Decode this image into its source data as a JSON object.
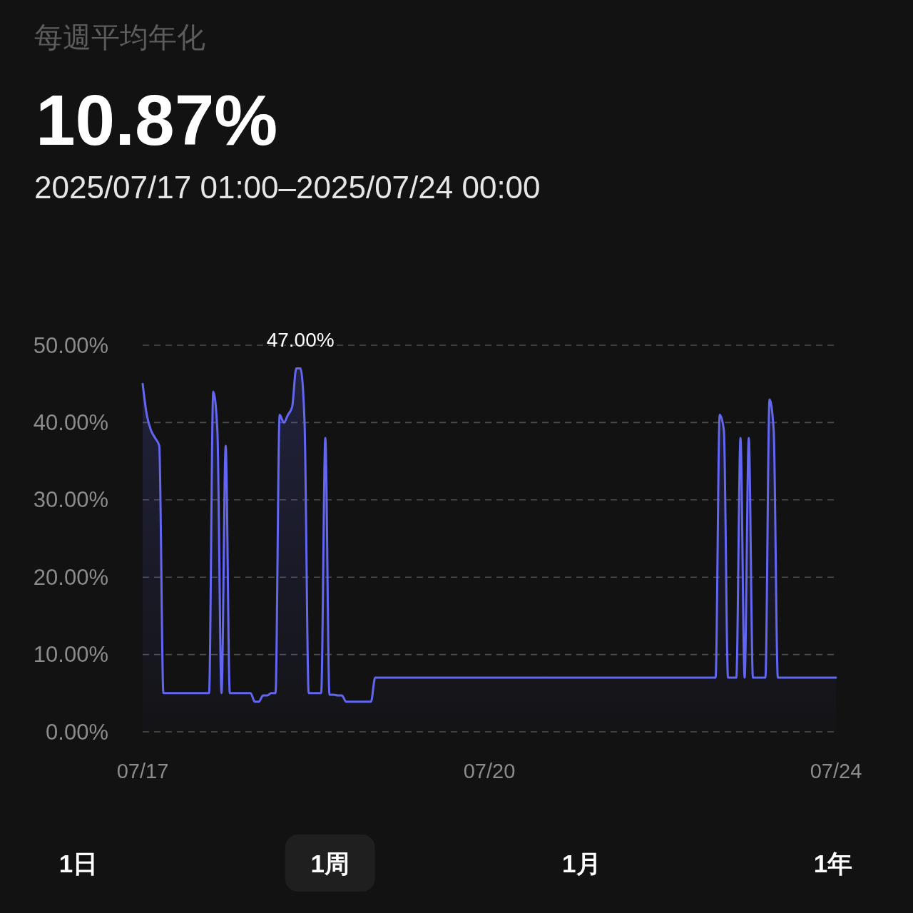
{
  "chart_data": {
    "type": "area",
    "title": "每週平均年化",
    "subtitle": "10.87%",
    "annotations": [
      "2025/07/17 01:00–2025/07/24 00:00",
      {
        "text": "47.00%",
        "x": "2025-07-18T15:00",
        "y": 47
      },
      "1日",
      "1周",
      "1月",
      "1年"
    ],
    "x": [
      "2025-07-17T01:00",
      "2025-07-17T02:00",
      "2025-07-17T03:00",
      "2025-07-17T04:00",
      "2025-07-17T05:00",
      "2025-07-17T06:00",
      "2025-07-17T17:00",
      "2025-07-17T18:00",
      "2025-07-17T19:00",
      "2025-07-17T20:00",
      "2025-07-17T21:00",
      "2025-07-17T22:00",
      "2025-07-18T03:00",
      "2025-07-18T04:00",
      "2025-07-18T05:00",
      "2025-07-18T06:00",
      "2025-07-18T07:00",
      "2025-07-18T08:00",
      "2025-07-18T09:00",
      "2025-07-18T10:00",
      "2025-07-18T11:00",
      "2025-07-18T12:00",
      "2025-07-18T13:00",
      "2025-07-18T14:00",
      "2025-07-18T15:00",
      "2025-07-18T16:00",
      "2025-07-18T17:00",
      "2025-07-18T20:00",
      "2025-07-18T21:00",
      "2025-07-18T22:00",
      "2025-07-18T23:00",
      "2025-07-19T00:00",
      "2025-07-19T01:00",
      "2025-07-19T02:00",
      "2025-07-19T08:00",
      "2025-07-19T09:00",
      "2025-07-22T19:00",
      "2025-07-22T20:00",
      "2025-07-22T21:00",
      "2025-07-22T22:00",
      "2025-07-23T00:00",
      "2025-07-23T01:00",
      "2025-07-23T02:00",
      "2025-07-23T03:00",
      "2025-07-23T04:00",
      "2025-07-23T07:00",
      "2025-07-23T08:00",
      "2025-07-23T09:00",
      "2025-07-23T10:00",
      "2025-07-24T00:00"
    ],
    "series": [
      {
        "color": "#6366f1",
        "values": [
          45,
          41,
          39,
          38,
          37,
          5,
          5,
          44,
          39,
          5,
          37,
          5,
          5,
          3.9,
          3.9,
          4.7,
          4.7,
          5,
          5,
          41,
          40,
          41,
          42,
          47,
          47,
          40,
          5,
          5,
          38,
          4.8,
          4.8,
          4.7,
          4.7,
          3.9,
          3.9,
          7,
          7,
          41,
          39,
          7,
          7,
          38,
          7,
          38,
          7,
          7,
          43,
          39,
          7,
          7
        ]
      }
    ],
    "xlim": [
      "2025-07-17T01:00",
      "2025-07-24T00:00"
    ],
    "xticks": [
      {
        "value": "2025-07-17T01:00",
        "label": "07/17"
      },
      {
        "value": "2025-07-20T12:30",
        "label": "07/20"
      },
      {
        "value": "2025-07-24T00:00",
        "label": "07/24"
      }
    ],
    "ylim": [
      0,
      50
    ],
    "yticks": [
      {
        "value": 0,
        "label": "0.00%"
      },
      {
        "value": 10,
        "label": "10.00%"
      },
      {
        "value": 20,
        "label": "20.00%"
      },
      {
        "value": 30,
        "label": "30.00%"
      },
      {
        "value": 40,
        "label": "40.00%"
      },
      {
        "value": 50,
        "label": "50.00%"
      }
    ],
    "grid": "y"
  }
}
